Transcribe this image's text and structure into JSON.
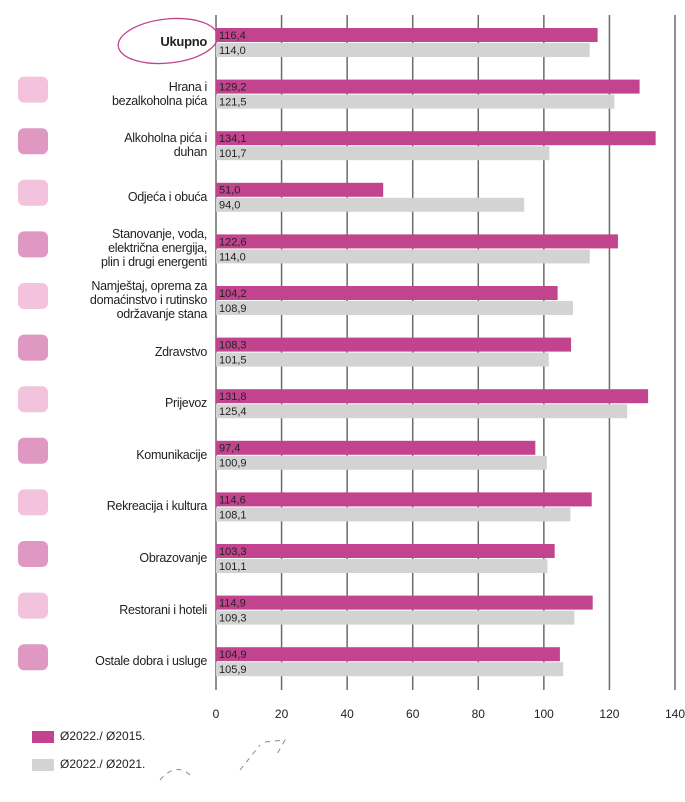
{
  "chart_data": {
    "type": "barh",
    "categories": [
      "Ukupno",
      "Hrana i\nbezalkoholna pića",
      "Alkoholna pića i\nduhan",
      "Odjeća i obuća",
      "Stanovanje, voda,\nelektrična energija,\nplin i drugi energenti",
      "Namještaj, oprema za\ndomaćinstvo i rutinsko\nodržavanje stana",
      "Zdravstvo",
      "Prijevoz",
      "Komunikacije",
      "Rekreacija i kultura",
      "Obrazovanje",
      "Restorani i hoteli",
      "Ostale dobra i usluge"
    ],
    "series": [
      {
        "name": "Ø2022./ Ø2015.",
        "color": "#c2448f",
        "values": [
          116.4,
          129.2,
          134.1,
          51.0,
          122.6,
          104.2,
          108.3,
          131.8,
          97.4,
          114.6,
          103.3,
          114.9,
          104.9
        ],
        "value_labels": [
          "116,4",
          "129,2",
          "134,1",
          "51,0",
          "122,6",
          "104,2",
          "108,3",
          "131,8",
          "97,4",
          "114,6",
          "103,3",
          "114,9",
          "104,9"
        ]
      },
      {
        "name": "Ø2022./ Ø2021.",
        "color": "#d3d3d3",
        "values": [
          114.0,
          121.5,
          101.7,
          94.0,
          114.0,
          108.9,
          101.5,
          125.4,
          100.9,
          108.1,
          101.1,
          109.3,
          105.9
        ],
        "value_labels": [
          "114,0",
          "121,5",
          "101,7",
          "94,0",
          "114,0",
          "108,9",
          "101,5",
          "125,4",
          "100,9",
          "108,1",
          "101,1",
          "109,3",
          "105,9"
        ]
      }
    ],
    "xlim": [
      0,
      140
    ],
    "xticks": [
      0,
      20,
      40,
      60,
      80,
      100,
      120,
      140
    ],
    "grid": true
  }
}
